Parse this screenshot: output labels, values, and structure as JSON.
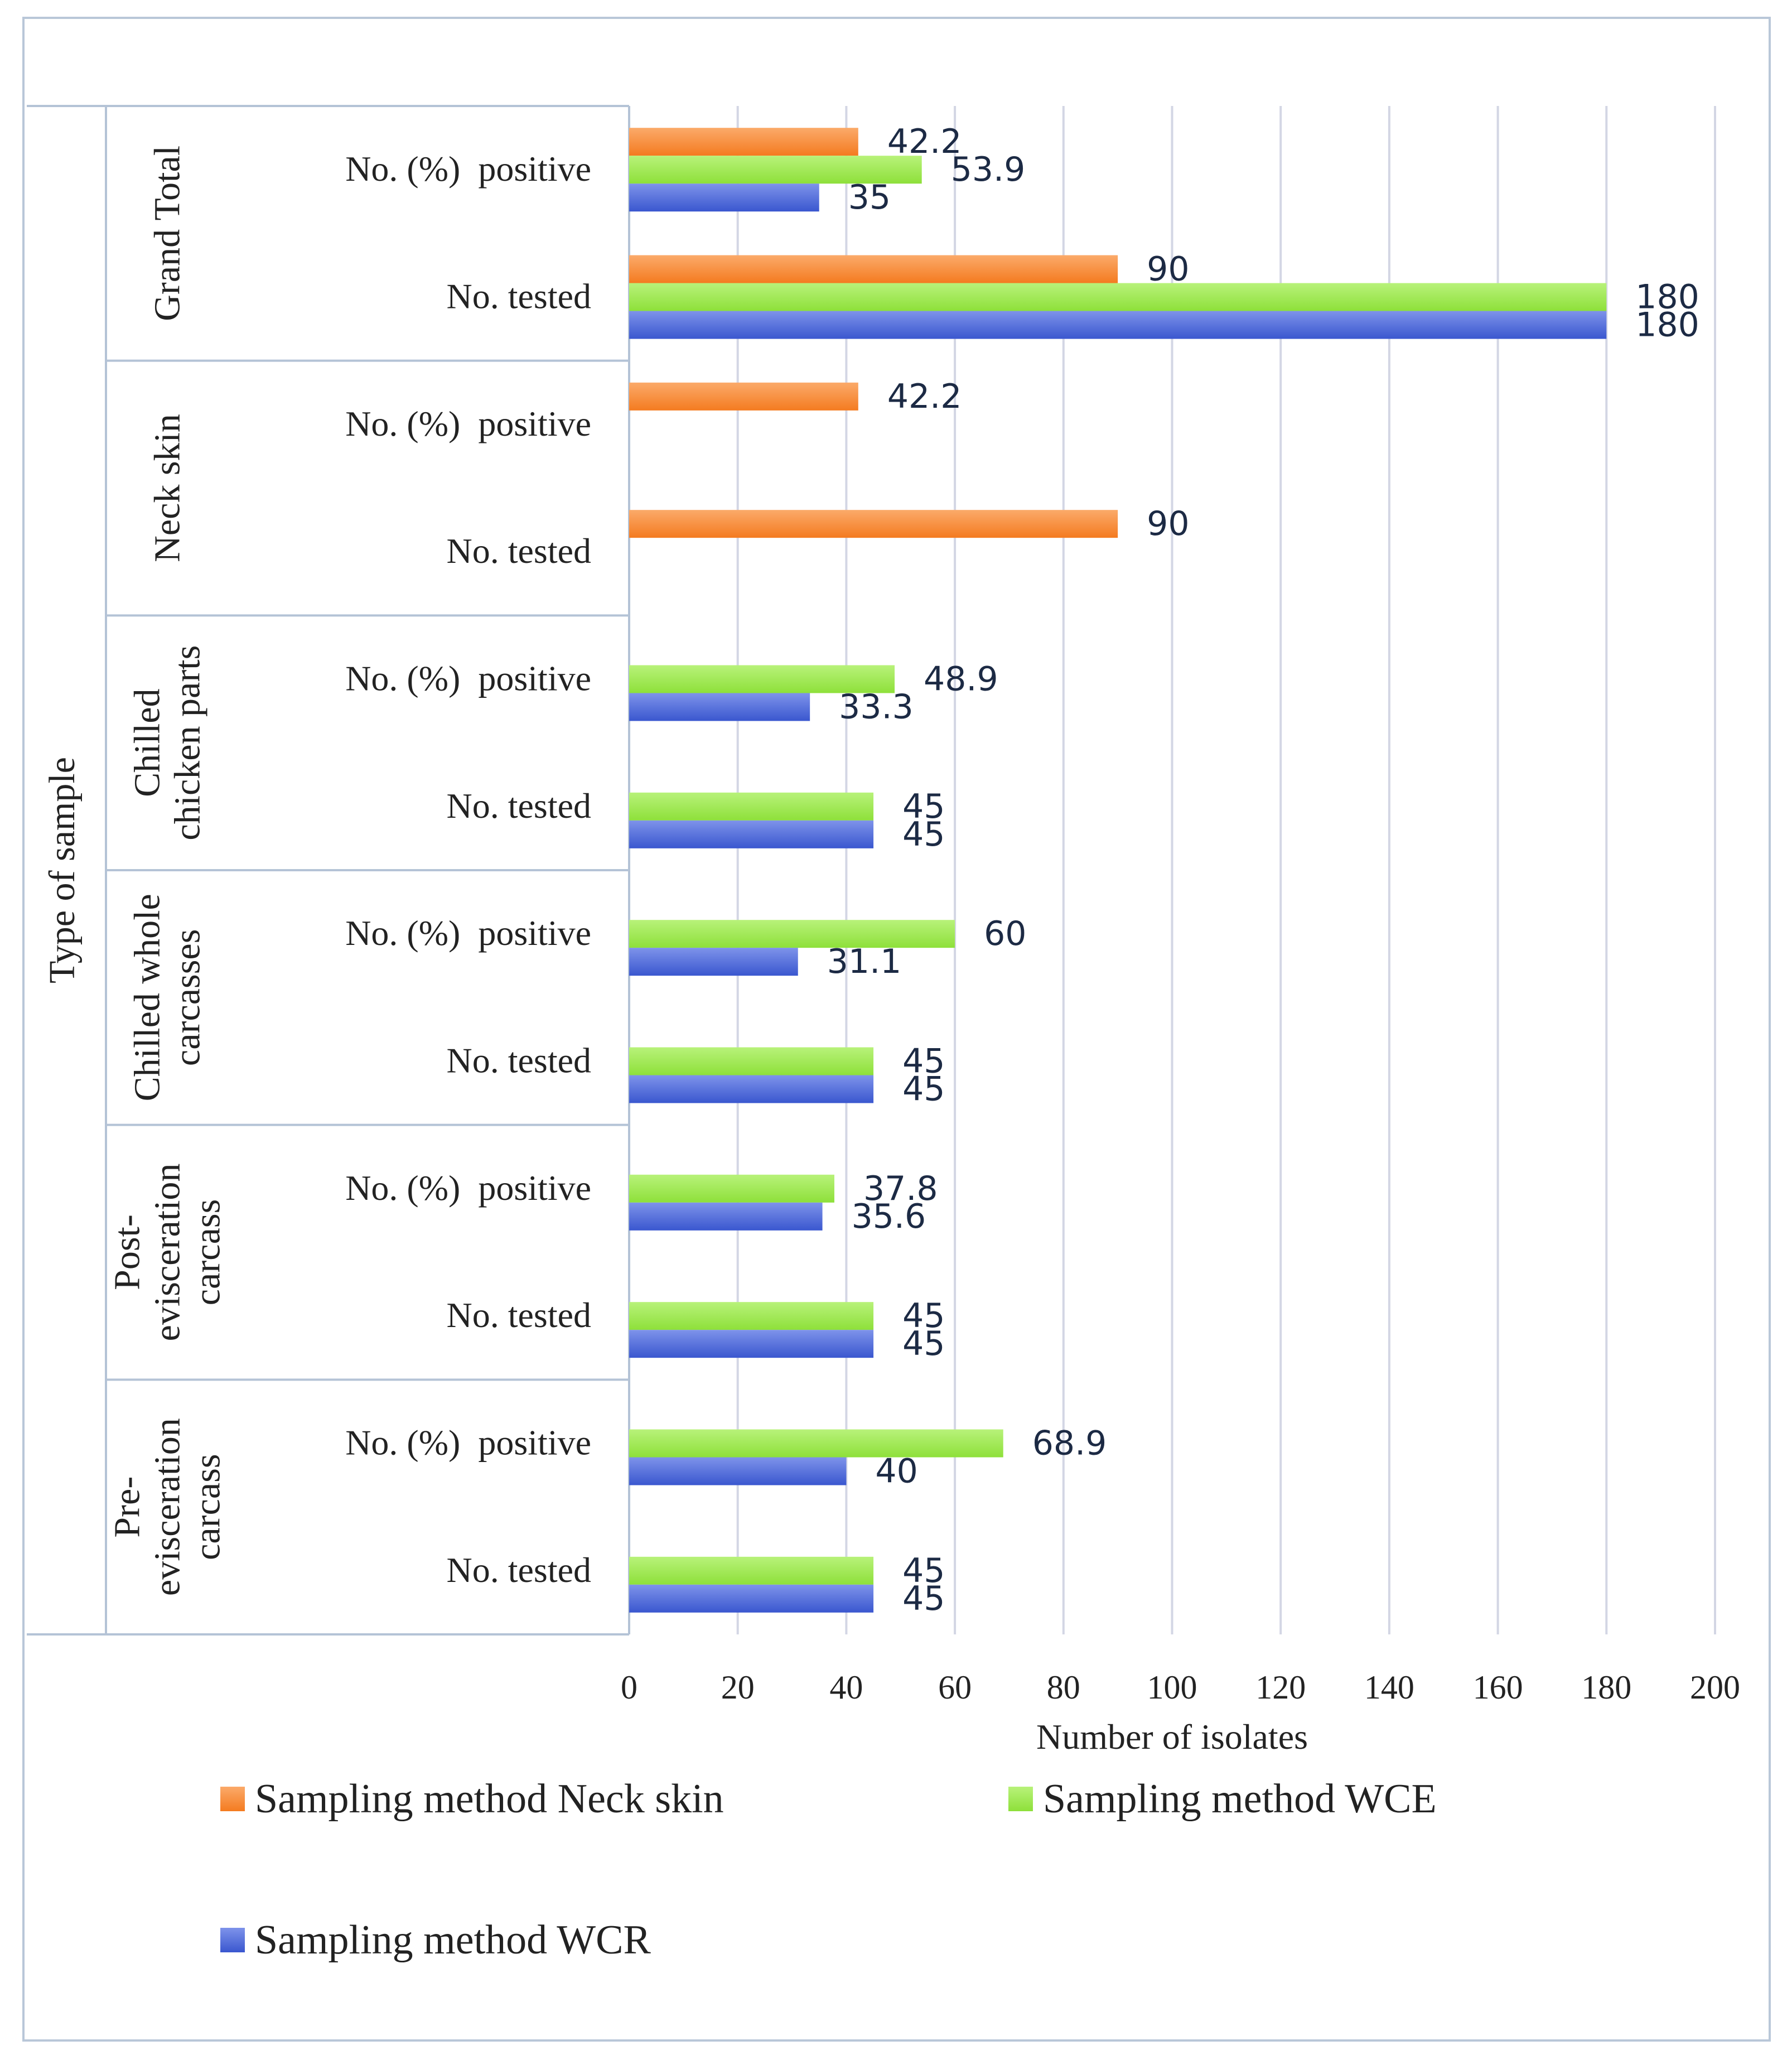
{
  "chart_data": {
    "type": "bar",
    "orientation": "horizontal",
    "ylabel": "Type of sample",
    "xlabel": "Number of isolates",
    "xlim": [
      0,
      200
    ],
    "x_ticks": [
      "0",
      "20",
      "40",
      "60",
      "80",
      "100",
      "120",
      "140",
      "160",
      "180",
      "200"
    ],
    "grid": "vertical",
    "legend_position": "bottom",
    "groups": [
      {
        "label": "Grand Total",
        "label_lines": [
          "Grand Total"
        ],
        "rows": [
          {
            "label": "No. (%)  positive",
            "values": {
              "neck": 42.2,
              "wce": 53.9,
              "wcr": 35
            }
          },
          {
            "label": "No. tested",
            "values": {
              "neck": 90,
              "wce": 180,
              "wcr": 180
            }
          }
        ]
      },
      {
        "label": "Neck skin",
        "label_lines": [
          "Neck skin"
        ],
        "rows": [
          {
            "label": "No. (%)  positive",
            "values": {
              "neck": 42.2,
              "wce": null,
              "wcr": null
            }
          },
          {
            "label": "No. tested",
            "values": {
              "neck": 90,
              "wce": null,
              "wcr": null
            }
          }
        ]
      },
      {
        "label": "Chilled chicken parts",
        "label_lines": [
          "Chilled",
          "chicken parts"
        ],
        "rows": [
          {
            "label": "No. (%)  positive",
            "values": {
              "neck": null,
              "wce": 48.9,
              "wcr": 33.3
            }
          },
          {
            "label": "No. tested",
            "values": {
              "neck": null,
              "wce": 45,
              "wcr": 45
            }
          }
        ]
      },
      {
        "label": "Chilled whole carcasses",
        "label_lines": [
          "Chilled whole",
          "carcasses"
        ],
        "rows": [
          {
            "label": "No. (%)  positive",
            "values": {
              "neck": null,
              "wce": 60,
              "wcr": 31.1
            }
          },
          {
            "label": "No. tested",
            "values": {
              "neck": null,
              "wce": 45,
              "wcr": 45
            }
          }
        ]
      },
      {
        "label": "Post-evisceration carcass",
        "label_lines": [
          "Post-",
          "evisceration",
          "carcass"
        ],
        "rows": [
          {
            "label": "No. (%)  positive",
            "values": {
              "neck": null,
              "wce": 37.8,
              "wcr": 35.6
            }
          },
          {
            "label": "No. tested",
            "values": {
              "neck": null,
              "wce": 45,
              "wcr": 45
            }
          }
        ]
      },
      {
        "label": "Pre-evisceration carcass",
        "label_lines": [
          "Pre-",
          "evisceration",
          "carcass"
        ],
        "rows": [
          {
            "label": "No. (%)  positive",
            "values": {
              "neck": null,
              "wce": 68.9,
              "wcr": 40
            }
          },
          {
            "label": "No. tested",
            "values": {
              "neck": null,
              "wce": 45,
              "wcr": 45
            }
          }
        ]
      }
    ],
    "series": [
      {
        "key": "neck",
        "name": "Sampling method Neck skin",
        "color": "#f47b20",
        "color_light": "#fbaa6a"
      },
      {
        "key": "wce",
        "name": "Sampling method WCE",
        "color": "#8ee03a",
        "color_light": "#b8f27a"
      },
      {
        "key": "wcr",
        "name": "Sampling method WCR",
        "color": "#3a57cf",
        "color_light": "#7e93ea"
      }
    ]
  }
}
